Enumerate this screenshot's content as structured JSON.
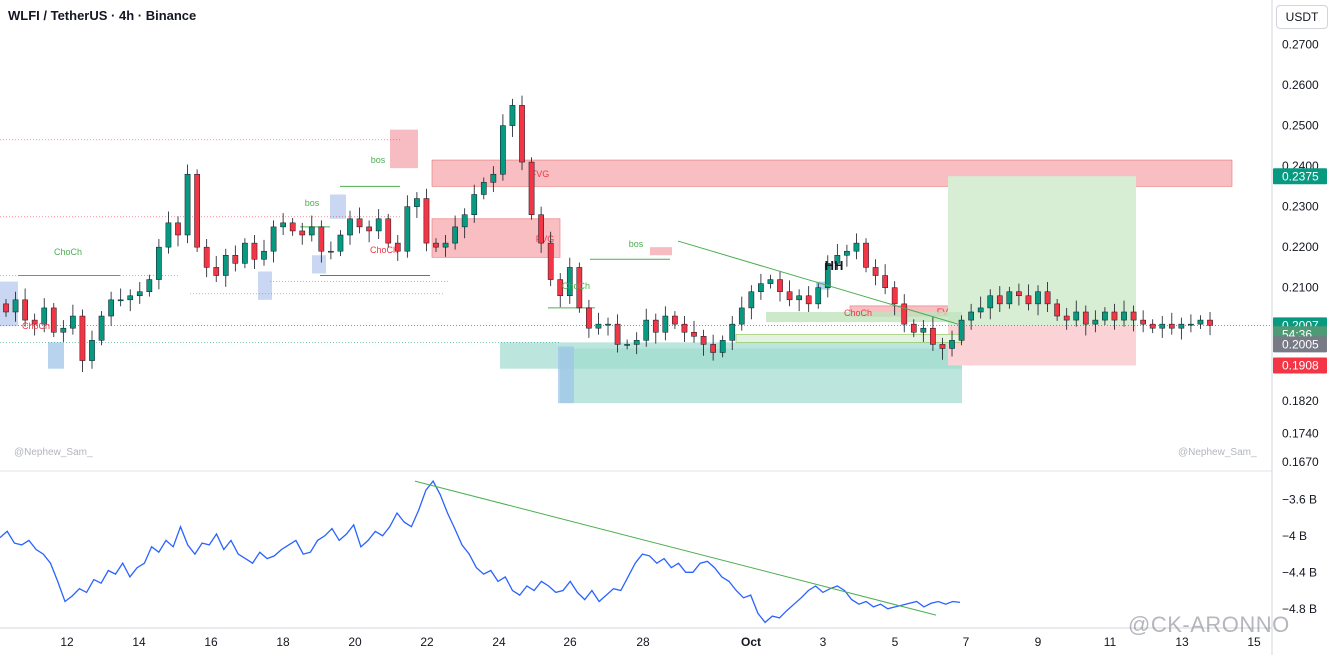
{
  "header": {
    "title": "WLFI / TetherUS · 4h · Binance",
    "currency": "USDT"
  },
  "watermarks": {
    "left": "@Nephew_Sam_",
    "right": "@Nephew_Sam_",
    "brand": "@CK-ARONNO"
  },
  "colors": {
    "bull": "#089981",
    "bear": "#f23645",
    "fvg_fill": "#f7a8ae",
    "demand_fill": "#9fdccf",
    "target_fill": "#d7eed5",
    "stop_fill": "#fbd2d6",
    "trendline": "#4caf50",
    "volume_line": "#2962ff"
  },
  "chart_data": [
    {
      "type": "candlestick",
      "symbol": "WLFI / TetherUS",
      "interval": "4h",
      "exchange": "Binance",
      "x_tick_labels": [
        "12",
        "14",
        "16",
        "18",
        "20",
        "22",
        "24",
        "26",
        "28",
        "Oct",
        "3",
        "5",
        "7",
        "9",
        "11",
        "13",
        "15"
      ],
      "y_tick_labels": [
        "0.2700",
        "0.2600",
        "0.2500",
        "0.2400",
        "0.2300",
        "0.2200",
        "0.2100",
        "0.2005",
        "0.1820",
        "0.1740",
        "0.1670"
      ],
      "ylim": [
        0.165,
        0.281
      ],
      "close_series": [
        0.204,
        0.207,
        0.202,
        0.201,
        0.205,
        0.199,
        0.2,
        0.203,
        0.192,
        0.197,
        0.203,
        0.207,
        0.207,
        0.208,
        0.209,
        0.212,
        0.22,
        0.226,
        0.223,
        0.238,
        0.22,
        0.215,
        0.213,
        0.218,
        0.216,
        0.221,
        0.217,
        0.219,
        0.225,
        0.226,
        0.224,
        0.223,
        0.225,
        0.219,
        0.219,
        0.223,
        0.227,
        0.225,
        0.224,
        0.227,
        0.221,
        0.219,
        0.23,
        0.232,
        0.221,
        0.22,
        0.221,
        0.225,
        0.228,
        0.233,
        0.236,
        0.238,
        0.25,
        0.255,
        0.241,
        0.228,
        0.221,
        0.212,
        0.208,
        0.215,
        0.205,
        0.2,
        0.201,
        0.201,
        0.196,
        0.196,
        0.197,
        0.202,
        0.199,
        0.203,
        0.201,
        0.199,
        0.198,
        0.196,
        0.194,
        0.197,
        0.201,
        0.205,
        0.209,
        0.211,
        0.212,
        0.209,
        0.207,
        0.208,
        0.206,
        0.21,
        0.216,
        0.218,
        0.219,
        0.221,
        0.215,
        0.213,
        0.21,
        0.206,
        0.201,
        0.199,
        0.2,
        0.196,
        0.195,
        0.197,
        0.202,
        0.204,
        0.205,
        0.208,
        0.206,
        0.209,
        0.208,
        0.206,
        0.209,
        0.206,
        0.203,
        0.202,
        0.204,
        0.201,
        0.202,
        0.204,
        0.202,
        0.204,
        0.202,
        0.201,
        0.2,
        0.201,
        0.2,
        0.201,
        0.201,
        0.202,
        0.2007
      ],
      "zones": [
        {
          "label": "FVG",
          "kind": "bearish-fvg",
          "top": 0.2415,
          "bottom": 0.235
        },
        {
          "label": "FVG",
          "kind": "bearish-fvg",
          "top": 0.227,
          "bottom": 0.2175
        },
        {
          "label": "FVG",
          "kind": "bearish-fvg",
          "top": 0.2055,
          "bottom": 0.203
        },
        {
          "label": "",
          "kind": "demand",
          "top": 0.1965,
          "bottom": 0.19
        },
        {
          "label": "",
          "kind": "demand",
          "top": 0.195,
          "bottom": 0.1815
        },
        {
          "label": "",
          "kind": "target",
          "top": 0.2375,
          "bottom": 0.2007
        },
        {
          "label": "",
          "kind": "stop",
          "top": 0.2007,
          "bottom": 0.1908
        }
      ],
      "structure_labels": [
        "ChoCh",
        "ChoCh",
        "bos",
        "bos",
        "ChoCh",
        "ChoCh",
        "bos",
        "ChoCh",
        "HH"
      ],
      "price_labels": [
        {
          "text": "0.2375",
          "role": "target",
          "price": 0.2375
        },
        {
          "text": "0.2007",
          "role": "last",
          "price": 0.2007
        },
        {
          "text": "54:36",
          "role": "countdown",
          "price": 0.1985
        },
        {
          "text": "0.2005",
          "role": "marker",
          "price": 0.196
        },
        {
          "text": "0.1908",
          "role": "stop",
          "price": 0.1908
        }
      ]
    },
    {
      "type": "line",
      "name": "",
      "y_tick_labels": [
        "−3.6 B",
        "−4 B",
        "−4.4 B",
        "−4.8 B"
      ],
      "ylim": [
        -5.0,
        -3.3
      ],
      "values": [
        -4.02,
        -3.95,
        -4.08,
        -4.1,
        -4.05,
        -4.15,
        -4.2,
        -4.3,
        -4.5,
        -4.72,
        -4.66,
        -4.58,
        -4.62,
        -4.48,
        -4.52,
        -4.38,
        -4.42,
        -4.3,
        -4.45,
        -4.35,
        -4.3,
        -4.12,
        -4.18,
        -4.05,
        -4.12,
        -3.9,
        -4.1,
        -4.2,
        -4.08,
        -4.1,
        -3.98,
        -4.15,
        -4.05,
        -4.2,
        -4.25,
        -4.3,
        -4.18,
        -4.25,
        -4.22,
        -4.15,
        -4.1,
        -4.05,
        -4.2,
        -4.18,
        -4.05,
        -4.0,
        -3.92,
        -4.05,
        -3.98,
        -3.88,
        -4.12,
        -4.05,
        -3.95,
        -4.0,
        -3.9,
        -3.75,
        -3.85,
        -3.9,
        -3.72,
        -3.5,
        -3.4,
        -3.55,
        -3.75,
        -3.92,
        -4.1,
        -4.2,
        -4.35,
        -4.42,
        -4.38,
        -4.5,
        -4.45,
        -4.6,
        -4.65,
        -4.55,
        -4.6,
        -4.5,
        -4.55,
        -4.62,
        -4.6,
        -4.5,
        -4.62,
        -4.7,
        -4.6,
        -4.72,
        -4.65,
        -4.58,
        -4.6,
        -4.45,
        -4.3,
        -4.2,
        -4.22,
        -4.3,
        -4.25,
        -4.35,
        -4.3,
        -4.4,
        -4.4,
        -4.3,
        -4.28,
        -4.35,
        -4.45,
        -4.5,
        -4.6,
        -4.68,
        -4.65,
        -4.85,
        -4.95,
        -4.88,
        -4.9,
        -4.82,
        -4.75,
        -4.68,
        -4.6,
        -4.55,
        -4.62,
        -4.58,
        -4.55,
        -4.6,
        -4.7,
        -4.75,
        -4.72,
        -4.78,
        -4.75,
        -4.8,
        -4.78,
        -4.76,
        -4.74,
        -4.72,
        -4.78,
        -4.74,
        -4.72,
        -4.75,
        -4.72,
        -4.73
      ]
    }
  ]
}
